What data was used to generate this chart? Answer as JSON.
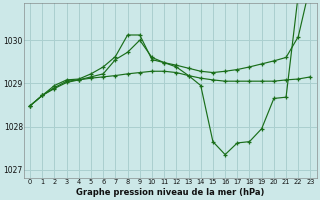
{
  "bg_color": "#cce8e8",
  "grid_color": "#aacfcf",
  "line_color": "#1a6e1a",
  "title": "Graphe pression niveau de la mer (hPa)",
  "hours": [
    0,
    1,
    2,
    3,
    4,
    5,
    6,
    7,
    8,
    9,
    10,
    11,
    12,
    13,
    14,
    15,
    16,
    17,
    18,
    19,
    20,
    21,
    22,
    23
  ],
  "ylim": [
    1026.8,
    1030.85
  ],
  "yticks": [
    1027,
    1028,
    1029,
    1030
  ],
  "s1_y": [
    1028.48,
    1028.72,
    1028.95,
    1029.08,
    1029.1,
    1029.22,
    1029.38,
    1029.62,
    1030.12,
    1030.12,
    1029.55,
    1029.48,
    1029.42,
    1029.35,
    1029.28,
    1029.25,
    1029.28,
    1029.32,
    1029.38,
    1029.45,
    1029.52,
    1029.6,
    1030.08,
    1031.3
  ],
  "s2_y": [
    1028.48,
    1028.72,
    1028.88,
    1029.02,
    1029.08,
    1029.12,
    1029.15,
    1029.18,
    1029.22,
    1029.25,
    1029.28,
    1029.28,
    1029.25,
    1029.18,
    1029.12,
    1029.08,
    1029.05,
    1029.05,
    1029.05,
    1029.05,
    1029.05,
    1029.08,
    1029.1,
    1029.15
  ],
  "s3_y": [
    1028.48,
    1028.72,
    1028.9,
    1029.05,
    1029.08,
    1029.15,
    1029.22,
    1029.55,
    1029.72,
    1030.0,
    1029.6,
    1029.48,
    1029.38,
    1029.18,
    1028.95,
    1027.65,
    1027.35,
    1027.62,
    1027.65,
    1027.95,
    1028.65,
    1028.68,
    1031.05,
    1031.3
  ]
}
